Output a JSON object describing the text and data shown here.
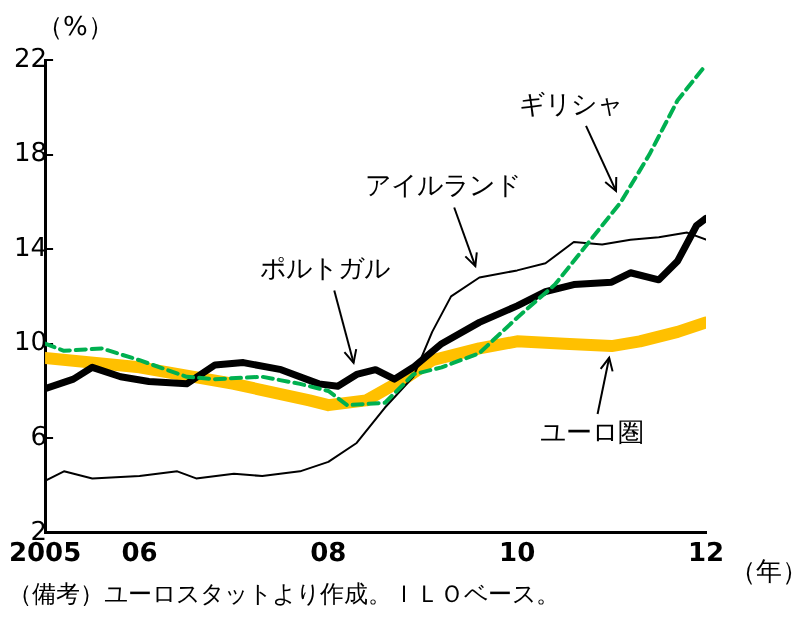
{
  "chart_data": {
    "type": "line",
    "ylabel": "（%）",
    "xlabel": "（年）",
    "xlim": [
      2005,
      2012
    ],
    "xticks": [
      {
        "value": 2005,
        "label": "2005"
      },
      {
        "value": 2006,
        "label": "06"
      },
      {
        "value": 2008,
        "label": "08"
      },
      {
        "value": 2010,
        "label": "10"
      },
      {
        "value": 2012,
        "label": "12"
      }
    ],
    "ylim": [
      2,
      22
    ],
    "yticks": [
      2,
      6,
      10,
      14,
      18,
      22
    ],
    "grid": false,
    "legend": false,
    "marker": "none",
    "series": [
      {
        "color": "#00b050",
        "line_style": "dashed",
        "x": [
          2005,
          2005.2,
          2005.6,
          2006,
          2006.5,
          2006.8,
          2007.3,
          2007.7,
          2008,
          2008.2,
          2008.6,
          2008.9,
          2009.2,
          2009.6,
          2010,
          2010.4,
          2010.8,
          2011.1,
          2011.4,
          2011.7,
          2012
        ],
        "values": [
          10.0,
          9.7,
          9.8,
          9.3,
          8.6,
          8.5,
          8.6,
          8.3,
          8.0,
          7.4,
          7.5,
          8.7,
          9.0,
          9.6,
          11.1,
          12.5,
          14.5,
          16.0,
          18.0,
          20.3,
          21.8
        ]
      },
      {
        "color": "#000000",
        "line_style": "solid",
        "x": [
          2005,
          2005.2,
          2005.5,
          2006,
          2006.4,
          2006.6,
          2007,
          2007.3,
          2007.7,
          2008,
          2008.3,
          2008.6,
          2008.9,
          2009.1,
          2009.3,
          2009.6,
          2010,
          2010.3,
          2010.6,
          2010.9,
          2011.2,
          2011.5,
          2011.8,
          2012
        ],
        "values": [
          4.2,
          4.6,
          4.3,
          4.4,
          4.6,
          4.3,
          4.5,
          4.4,
          4.6,
          5.0,
          5.8,
          7.3,
          8.6,
          10.5,
          12.0,
          12.8,
          13.1,
          13.4,
          14.3,
          14.2,
          14.4,
          14.5,
          14.7,
          14.4
        ]
      },
      {
        "color": "#000000",
        "line_style": "solid",
        "x": [
          2005,
          2005.3,
          2005.5,
          2005.8,
          2006.1,
          2006.5,
          2006.8,
          2007.1,
          2007.5,
          2007.9,
          2008.1,
          2008.3,
          2008.5,
          2008.7,
          2008.9,
          2009.2,
          2009.6,
          2010,
          2010.3,
          2010.6,
          2011,
          2011.2,
          2011.5,
          2011.7,
          2011.9,
          2012
        ],
        "values": [
          8.1,
          8.5,
          9.0,
          8.6,
          8.4,
          8.3,
          9.1,
          9.2,
          8.9,
          8.3,
          8.2,
          8.7,
          8.9,
          8.5,
          9.0,
          10.0,
          10.9,
          11.6,
          12.2,
          12.5,
          12.6,
          13.0,
          12.7,
          13.5,
          15.0,
          15.3
        ]
      },
      {
        "color": "#ffc000",
        "line_style": "solid",
        "x": [
          2005,
          2006,
          2007,
          2007.8,
          2008,
          2008.4,
          2008.8,
          2009.1,
          2009.6,
          2010,
          2010.5,
          2011,
          2011.3,
          2011.7,
          2012
        ],
        "values": [
          9.4,
          9.0,
          8.3,
          7.6,
          7.4,
          7.6,
          8.5,
          9.3,
          9.8,
          10.1,
          10.0,
          9.9,
          10.1,
          10.5,
          10.9
        ]
      }
    ],
    "annotations": [
      {
        "text": "ギリシャ",
        "x": 2011.1,
        "y": 16.0
      },
      {
        "text": "アイルランド",
        "x": 2009.6,
        "y": 12.8
      },
      {
        "text": "ポルトガル",
        "x": 2008.3,
        "y": 8.7
      },
      {
        "text": "ユーロ圏",
        "x": 2011,
        "y": 9.9
      },
      "（備考）ユーロスタットより作成。ＩＬＯベース。"
    ]
  }
}
